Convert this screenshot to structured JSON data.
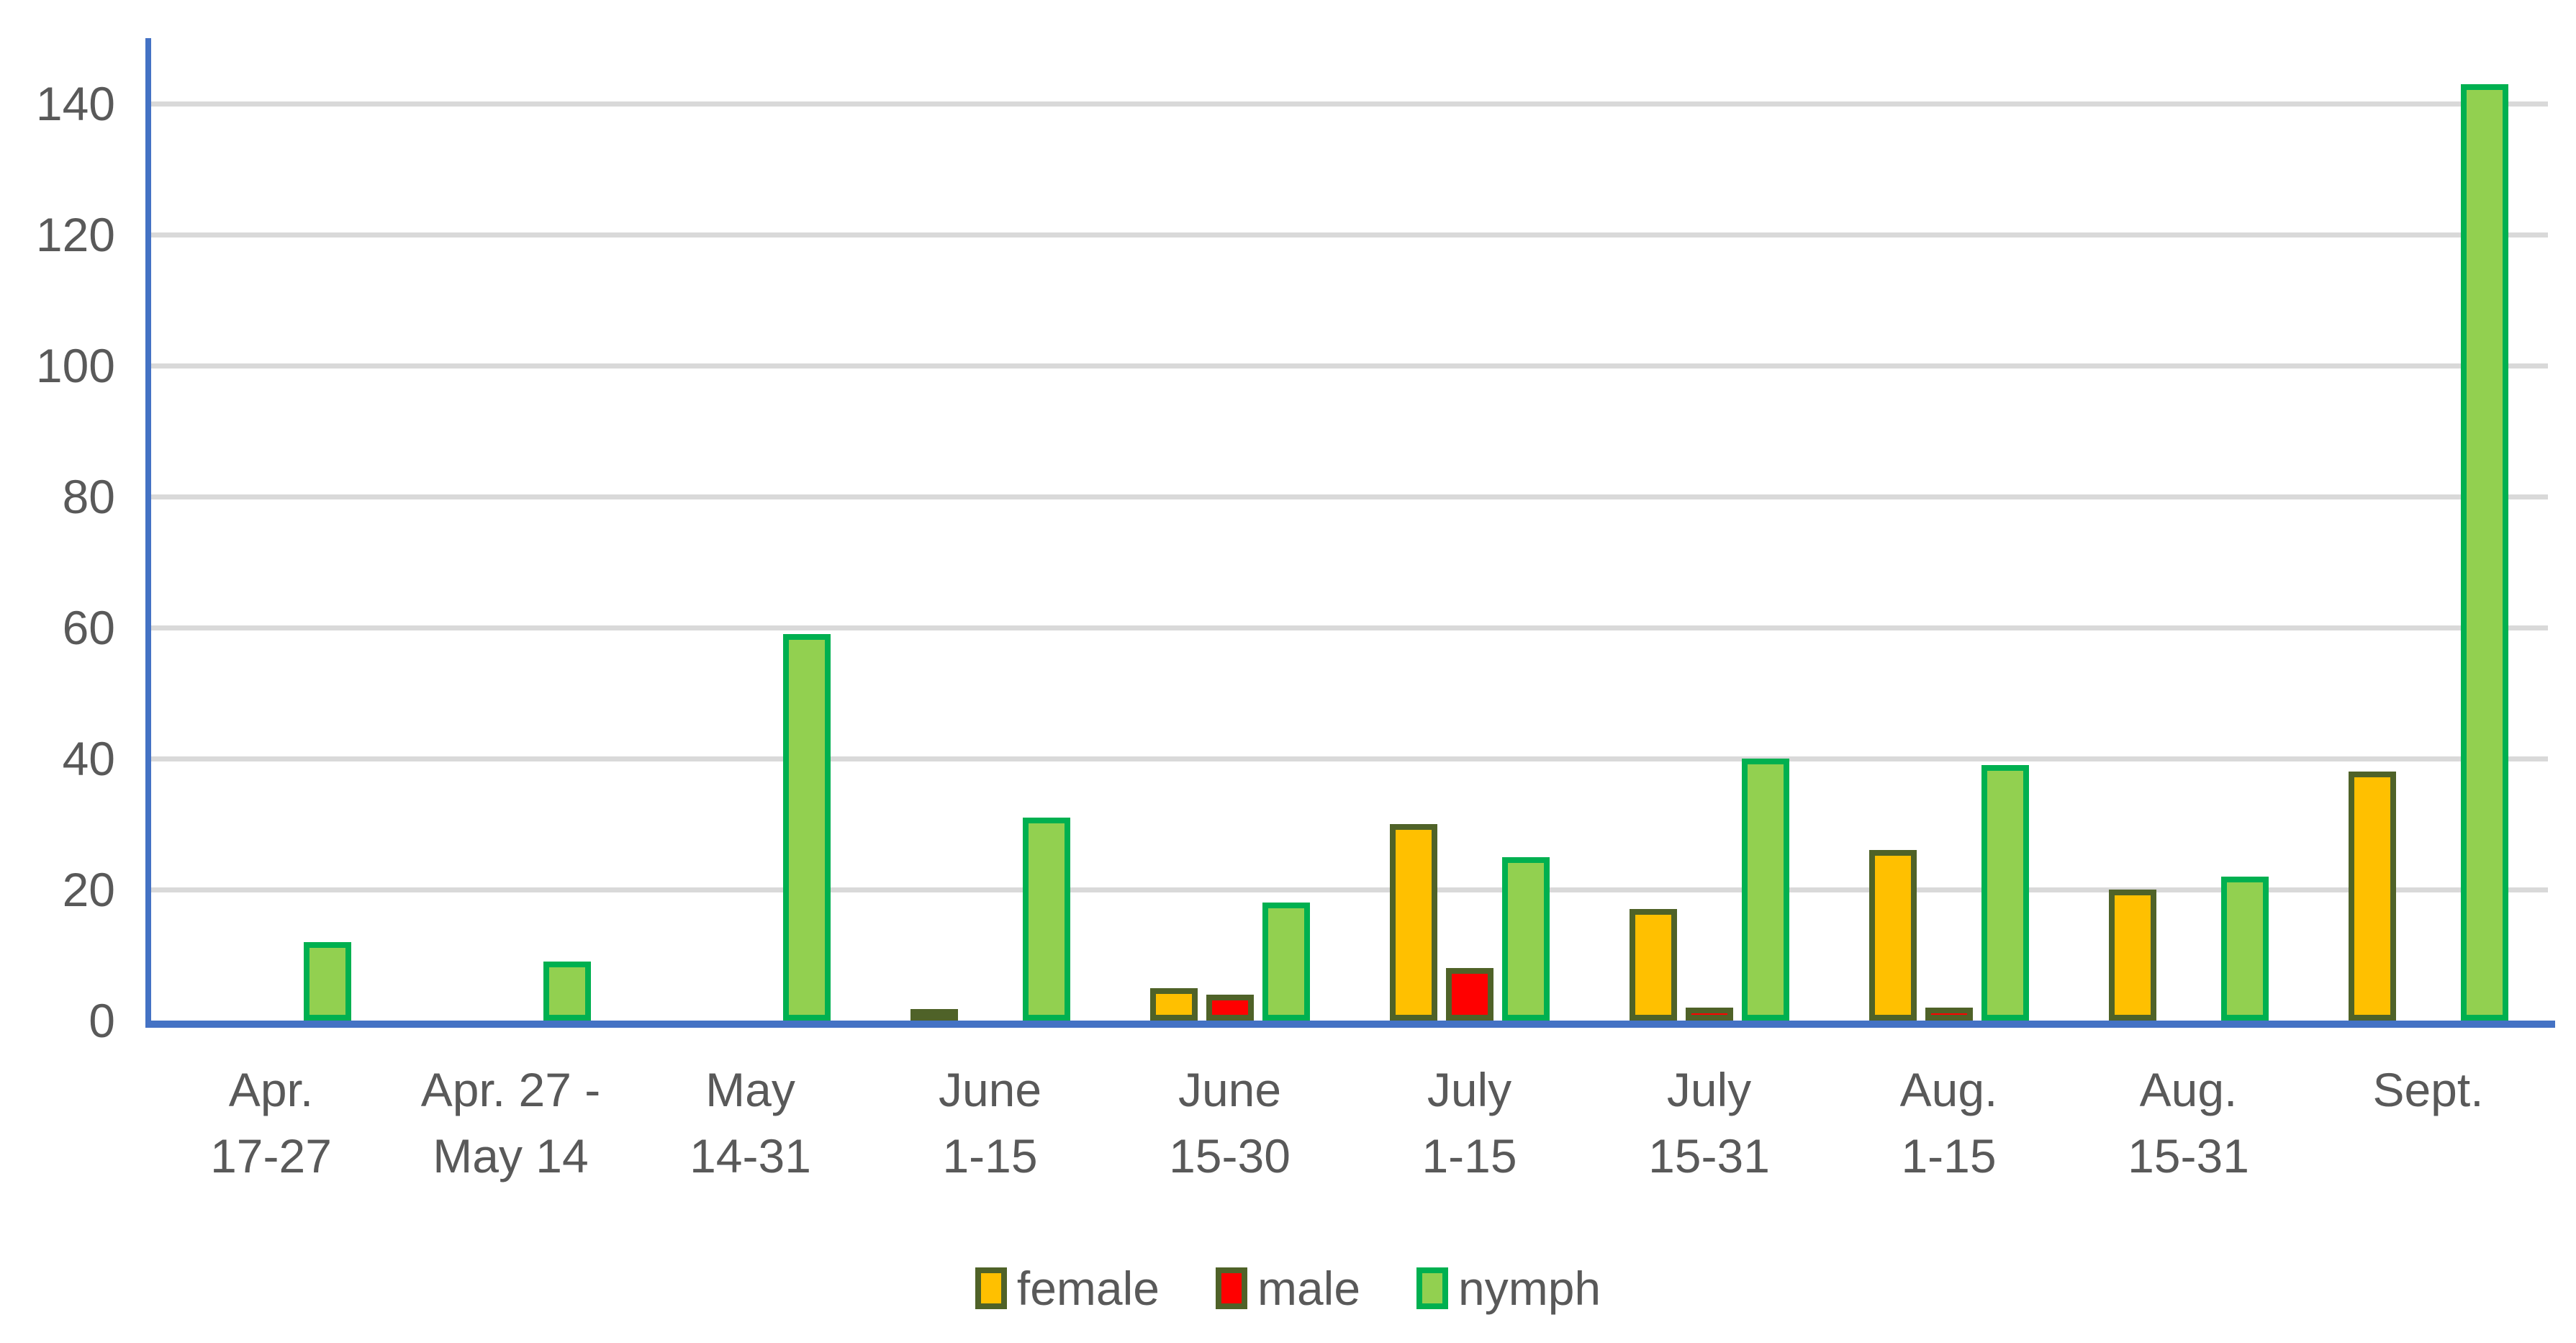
{
  "chart_data": {
    "type": "bar",
    "title": "",
    "xlabel": "",
    "ylabel": "",
    "categories": [
      "Apr. 17-27",
      "Apr. 27 - May 14",
      "May 14-31",
      "June 1-15",
      "June 15-30",
      "July 1-15",
      "July 15-31",
      "Aug. 1-15",
      "Aug. 15-31",
      "Sept."
    ],
    "category_label_lines": [
      [
        "Apr.",
        "17-27"
      ],
      [
        "Apr. 27 -",
        "May 14"
      ],
      [
        "May",
        "14-31"
      ],
      [
        "June",
        "1-15"
      ],
      [
        "June",
        "15-30"
      ],
      [
        "July",
        "1-15"
      ],
      [
        "July",
        "15-31"
      ],
      [
        "Aug.",
        "1-15"
      ],
      [
        "Aug.",
        "15-31"
      ],
      [
        "Sept.",
        ""
      ]
    ],
    "series": [
      {
        "name": "female",
        "values": [
          0,
          0,
          0,
          1,
          5,
          30,
          17,
          26,
          20,
          38
        ],
        "fill": "#FFC000",
        "border": "#4F6228"
      },
      {
        "name": "male",
        "values": [
          0,
          0,
          0,
          0,
          4,
          8,
          2,
          2,
          0,
          0
        ],
        "fill": "#FF0000",
        "border": "#4F6228"
      },
      {
        "name": "nymph",
        "values": [
          12,
          9,
          59,
          31,
          18,
          25,
          40,
          39,
          22,
          143
        ],
        "fill": "#92D050",
        "border": "#00B050"
      }
    ],
    "ylim": [
      0,
      150
    ],
    "yticks": [
      0,
      20,
      40,
      60,
      80,
      100,
      120,
      140
    ],
    "grid": true,
    "legend_position": "bottom"
  },
  "style_colors": {
    "axis_line": "#4472C4",
    "gridline": "#D9D9D9",
    "tick_text": "#595959"
  }
}
